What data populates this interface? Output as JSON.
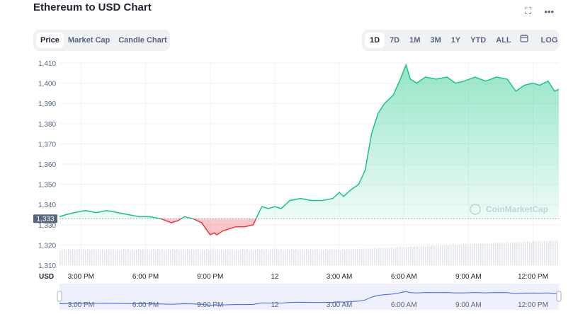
{
  "header": {
    "title": "Ethereum to USD Chart"
  },
  "icons": {
    "fullscreen": "fullscreen-icon",
    "more": "more-icon",
    "calendar": "calendar-icon"
  },
  "tabs_left": [
    {
      "label": "Price",
      "active": true
    },
    {
      "label": "Market Cap",
      "active": false
    },
    {
      "label": "Candle Chart",
      "active": false
    }
  ],
  "tabs_right": [
    {
      "label": "1D",
      "active": true
    },
    {
      "label": "7D",
      "active": false
    },
    {
      "label": "1M",
      "active": false
    },
    {
      "label": "3M",
      "active": false
    },
    {
      "label": "1Y",
      "active": false
    },
    {
      "label": "YTD",
      "active": false
    },
    {
      "label": "ALL",
      "active": false
    }
  ],
  "log_label": "LOG",
  "watermark": "CoinMarketCap",
  "currency_label": "USD",
  "colors": {
    "up": "#16c784",
    "down": "#ea3943",
    "navigator": "#3861fb",
    "baseline": "#8a94a6"
  },
  "chart_data": {
    "type": "area",
    "title": "Ethereum to USD Chart",
    "ylim": [
      1310,
      1410
    ],
    "y_ticks": [
      "1,310",
      "1,320",
      "1,330",
      "1,340",
      "1,350",
      "1,360",
      "1,370",
      "1,380",
      "1,390",
      "1,400",
      "1,410"
    ],
    "baseline_value": 1333,
    "baseline_label": "1,333",
    "x_ticks": [
      "3:00 PM",
      "6:00 PM",
      "9:00 PM",
      "12",
      "3:00 AM",
      "6:00 AM",
      "9:00 AM",
      "12:00 PM"
    ],
    "x_hours": [
      15,
      18,
      21,
      24,
      27,
      30,
      33,
      36
    ],
    "x_range": [
      14,
      37.2
    ],
    "series": [
      {
        "x": [
          14,
          14.3,
          14.7,
          15.2,
          15.7,
          16.2,
          16.7,
          17.2,
          17.7,
          18.2,
          18.7,
          19.2,
          19.5,
          19.8,
          20.2,
          20.6,
          21,
          21.2,
          21.3,
          21.6,
          21.9,
          22.2,
          22.6,
          23,
          23.4,
          23.7,
          24,
          24.3,
          24.7,
          25.2,
          25.7,
          26.2,
          26.7,
          27,
          27.2,
          27.5,
          27.9,
          28.2,
          28.5,
          28.8,
          29.1,
          29.5,
          29.8,
          30.1,
          30.3,
          30.6,
          31,
          31.5,
          32,
          32.4,
          32.8,
          33.3,
          33.8,
          34.3,
          34.8,
          35.2,
          35.6,
          36,
          36.3,
          36.7,
          37,
          37.2
        ],
        "y": [
          1334,
          1335,
          1336,
          1337,
          1336,
          1337,
          1336,
          1335,
          1334,
          1334,
          1333,
          1331,
          1332,
          1334,
          1333,
          1331,
          1325,
          1326,
          1325,
          1327,
          1328,
          1329,
          1329,
          1330,
          1339,
          1338,
          1339,
          1338,
          1342,
          1343,
          1342,
          1342,
          1343,
          1346,
          1344,
          1347,
          1350,
          1357,
          1375,
          1385,
          1390,
          1394,
          1401,
          1409,
          1402,
          1400,
          1403,
          1402,
          1403,
          1400,
          1401,
          1403,
          1401,
          1403,
          1402,
          1396,
          1399,
          1400,
          1399,
          1401,
          1396,
          1397
        ]
      }
    ]
  }
}
